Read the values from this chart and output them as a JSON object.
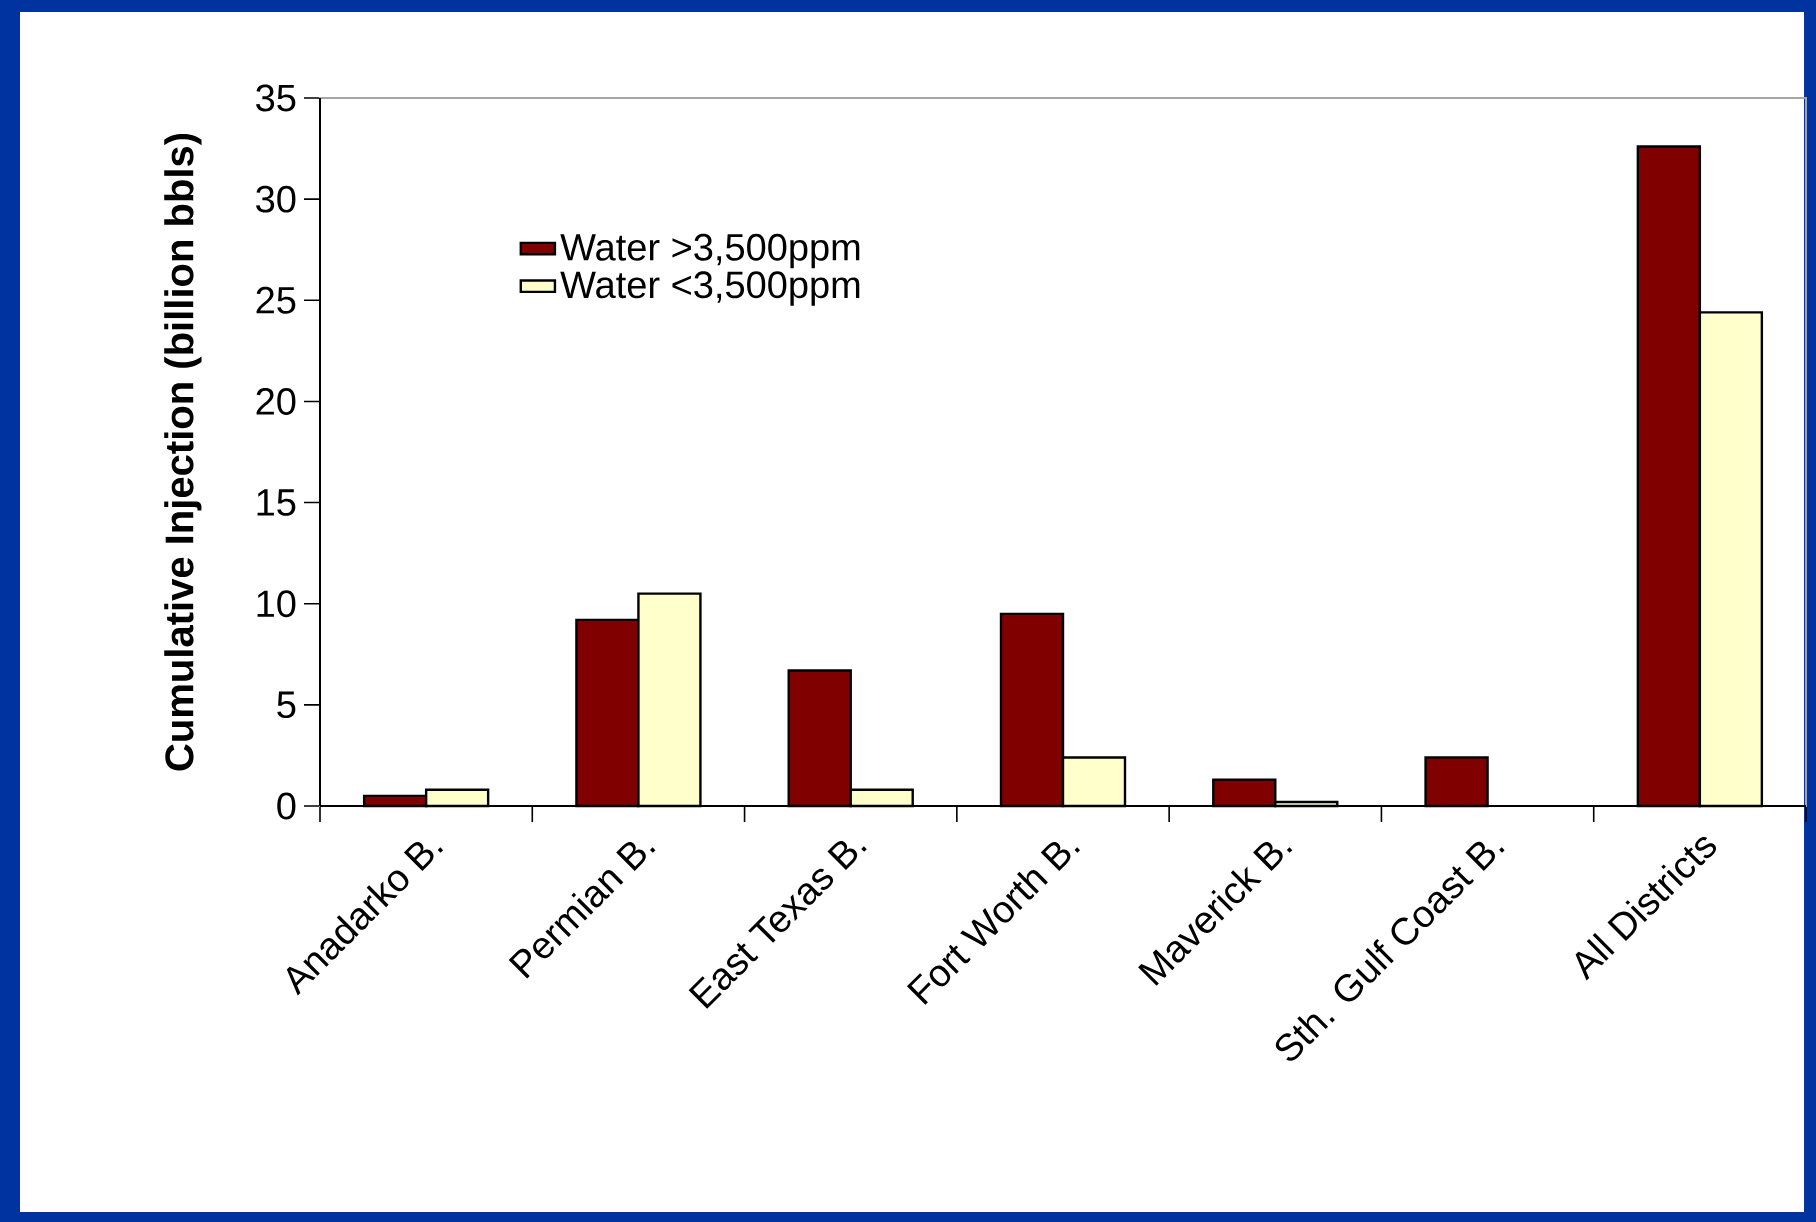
{
  "chart_data": {
    "type": "bar",
    "ylabel": "Cumulative Injection (billion bbls)",
    "categories": [
      "Anadarko B.",
      "Permian B.",
      "East Texas B.",
      "Fort Worth B.",
      "Maverick B.",
      "Sth. Gulf Coast B.",
      "All Districts"
    ],
    "series": [
      {
        "name": "Water >3,500ppm",
        "color": "#800000",
        "values": [
          0.5,
          9.2,
          6.7,
          9.5,
          1.3,
          2.4,
          32.6
        ]
      },
      {
        "name": "Water <3,500ppm",
        "color": "#ffffcc",
        "values": [
          0.8,
          10.5,
          0.8,
          2.4,
          0.2,
          null,
          24.4
        ]
      }
    ],
    "ylim": [
      0,
      35
    ],
    "yticks": [
      0,
      5,
      10,
      15,
      20,
      25,
      30,
      35
    ],
    "legend": "top left"
  }
}
